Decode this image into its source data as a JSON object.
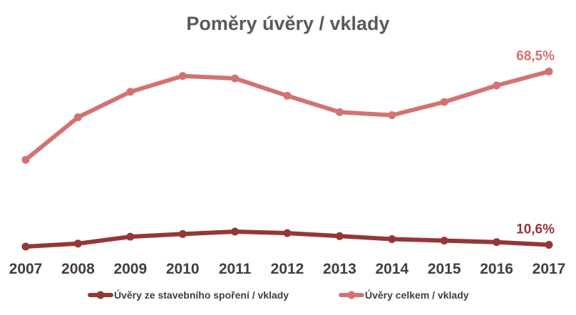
{
  "chart_data": {
    "type": "line",
    "title": "Poměry úvěry / vklady",
    "xlabel": "",
    "ylabel": "",
    "x": [
      "2007",
      "2008",
      "2009",
      "2010",
      "2011",
      "2012",
      "2013",
      "2014",
      "2015",
      "2016",
      "2017"
    ],
    "ylim": [
      0,
      80
    ],
    "grid": false,
    "legend_position": "bottom",
    "series": [
      {
        "name": "Úvěry ze stavebního spoření / vklady",
        "color": "#953735",
        "values": [
          10.0,
          11.0,
          13.3,
          14.2,
          15.0,
          14.5,
          13.5,
          12.5,
          12.0,
          11.5,
          10.6
        ],
        "last_label": "10,6%"
      },
      {
        "name": "Úvěry celkem / vklady",
        "color": "#d47272",
        "values": [
          39.0,
          53.2,
          61.7,
          67.0,
          66.2,
          60.4,
          54.9,
          53.9,
          58.3,
          63.8,
          68.5
        ],
        "last_label": "68,5%"
      }
    ]
  }
}
